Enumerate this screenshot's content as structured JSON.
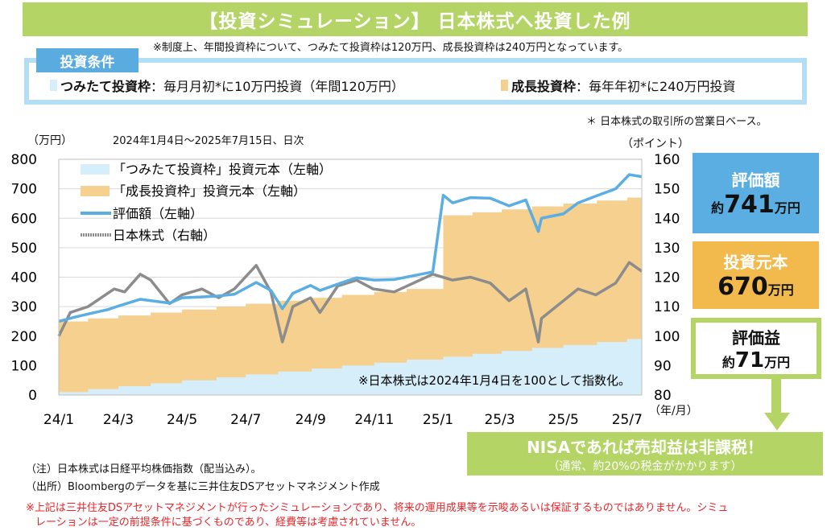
{
  "title": "【投資シミュレーション】 日本株式へ投資した例",
  "limit_note": "※制度上、年間投資枠について、つみたて投資枠は120万円、成長投資枠は240万円となっています。",
  "conditions": {
    "label": "投資条件",
    "tsumitate_name": "つみたて投資枠",
    "tsumitate_desc": "：毎月月初*に10万円投資（年間120万円）",
    "growth_name": "成長投資枠",
    "growth_desc": "：毎年年初*に240万円投資",
    "colors": {
      "tsumitate": "#d6eefa",
      "growth": "#f5d08f"
    }
  },
  "business_day_note": "＊ 日本株式の取引所の営業日ベース。",
  "summary": {
    "value_label": "評価額",
    "value_prefix": "約",
    "value_number": "741",
    "value_unit": "万円",
    "cost_label": "投資元本",
    "cost_number": "670",
    "cost_unit": "万円",
    "gain_label": "評価益",
    "gain_prefix": "約",
    "gain_number": "71",
    "gain_unit": "万円",
    "nisa_title": "NISAであれば売却益は非課税！",
    "nisa_sub": "（通常、約20%の税金がかかります）",
    "colors": {
      "value": "#5aaee2",
      "cost": "#f2b94c",
      "nisa": "#b4d465"
    }
  },
  "chart_data": {
    "type": "area",
    "ylabel_left": "（万円）",
    "ylabel_right": "（ポイント）",
    "xlabel": "（年/月）",
    "period": "2024年1月4日～2025年7月15日、日次",
    "annotation": "※日本株式は2024年1月4日を100として指数化。",
    "ylim_left": [
      0,
      800
    ],
    "yticks_left": [
      "0",
      "100",
      "200",
      "300",
      "400",
      "500",
      "600",
      "700",
      "800"
    ],
    "ylim_right": [
      80,
      160
    ],
    "yticks_right": [
      "80",
      "90",
      "100",
      "110",
      "120",
      "130",
      "140",
      "150",
      "160"
    ],
    "xticks": [
      {
        "label": "24/1",
        "date": "2024-01-01"
      },
      {
        "label": "24/3",
        "date": "2024-03-01"
      },
      {
        "label": "24/5",
        "date": "2024-05-01"
      },
      {
        "label": "24/7",
        "date": "2024-07-01"
      },
      {
        "label": "24/9",
        "date": "2024-09-01"
      },
      {
        "label": "24/11",
        "date": "2024-11-01"
      },
      {
        "label": "25/1",
        "date": "2025-01-01"
      },
      {
        "label": "25/3",
        "date": "2025-03-01"
      },
      {
        "label": "25/5",
        "date": "2025-05-01"
      },
      {
        "label": "25/7",
        "date": "2025-07-01"
      }
    ],
    "xrange": [
      "2024-01-04",
      "2025-07-15"
    ],
    "grid": "horizontal",
    "legend": "top-left",
    "series": [
      {
        "name": "「つみたて投資枠」投資元本（左軸）",
        "axis": "left",
        "kind": "area-step",
        "color": "#d6eefa",
        "points": [
          [
            "2024-01-04",
            10
          ],
          [
            "2024-02-01",
            20
          ],
          [
            "2024-03-01",
            30
          ],
          [
            "2024-04-01",
            40
          ],
          [
            "2024-05-01",
            50
          ],
          [
            "2024-06-03",
            60
          ],
          [
            "2024-07-01",
            70
          ],
          [
            "2024-08-01",
            80
          ],
          [
            "2024-09-02",
            90
          ],
          [
            "2024-10-01",
            100
          ],
          [
            "2024-11-01",
            110
          ],
          [
            "2024-12-02",
            120
          ],
          [
            "2025-01-06",
            130
          ],
          [
            "2025-02-03",
            140
          ],
          [
            "2025-03-03",
            150
          ],
          [
            "2025-04-01",
            160
          ],
          [
            "2025-05-01",
            170
          ],
          [
            "2025-06-02",
            180
          ],
          [
            "2025-07-01",
            190
          ]
        ]
      },
      {
        "name": "「成長投資枠」投資元本（左軸）",
        "axis": "left",
        "kind": "area-step-stacked",
        "color": "#f5d08f",
        "points": [
          [
            "2024-01-04",
            240
          ],
          [
            "2025-01-06",
            480
          ]
        ]
      },
      {
        "name": "評価額（左軸）",
        "axis": "left",
        "kind": "line",
        "color": "#5aaee2",
        "points": [
          [
            "2024-01-04",
            250
          ],
          [
            "2024-01-20",
            265
          ],
          [
            "2024-02-01",
            275
          ],
          [
            "2024-02-20",
            290
          ],
          [
            "2024-03-01",
            302
          ],
          [
            "2024-03-22",
            325
          ],
          [
            "2024-04-19",
            312
          ],
          [
            "2024-05-01",
            330
          ],
          [
            "2024-06-01",
            335
          ],
          [
            "2024-06-20",
            342
          ],
          [
            "2024-07-11",
            382
          ],
          [
            "2024-07-25",
            355
          ],
          [
            "2024-08-05",
            293
          ],
          [
            "2024-08-15",
            345
          ],
          [
            "2024-09-01",
            372
          ],
          [
            "2024-09-10",
            355
          ],
          [
            "2024-09-30",
            380
          ],
          [
            "2024-10-15",
            398
          ],
          [
            "2024-11-01",
            390
          ],
          [
            "2024-11-20",
            392
          ],
          [
            "2024-12-27",
            418
          ],
          [
            "2025-01-06",
            678
          ],
          [
            "2025-01-15",
            652
          ],
          [
            "2025-02-01",
            670
          ],
          [
            "2025-02-20",
            668
          ],
          [
            "2025-03-10",
            642
          ],
          [
            "2025-03-26",
            662
          ],
          [
            "2025-04-07",
            555
          ],
          [
            "2025-04-10",
            600
          ],
          [
            "2025-05-01",
            615
          ],
          [
            "2025-05-15",
            652
          ],
          [
            "2025-06-01",
            675
          ],
          [
            "2025-06-20",
            700
          ],
          [
            "2025-07-03",
            748
          ],
          [
            "2025-07-15",
            741
          ]
        ]
      },
      {
        "name": "日本株式（右軸）",
        "axis": "right",
        "kind": "line",
        "color": "#8c8c8c",
        "points": [
          [
            "2024-01-04",
            100
          ],
          [
            "2024-01-15",
            108
          ],
          [
            "2024-02-01",
            110
          ],
          [
            "2024-02-26",
            116
          ],
          [
            "2024-03-07",
            115
          ],
          [
            "2024-03-22",
            121
          ],
          [
            "2024-04-01",
            119
          ],
          [
            "2024-04-19",
            111
          ],
          [
            "2024-05-01",
            114
          ],
          [
            "2024-05-20",
            116
          ],
          [
            "2024-06-05",
            113
          ],
          [
            "2024-06-20",
            116
          ],
          [
            "2024-07-11",
            124
          ],
          [
            "2024-07-25",
            115
          ],
          [
            "2024-08-05",
            98
          ],
          [
            "2024-08-15",
            110
          ],
          [
            "2024-09-01",
            113
          ],
          [
            "2024-09-10",
            108
          ],
          [
            "2024-09-27",
            117
          ],
          [
            "2024-10-15",
            119
          ],
          [
            "2024-10-31",
            116
          ],
          [
            "2024-11-20",
            115
          ],
          [
            "2024-12-27",
            121
          ],
          [
            "2025-01-15",
            119
          ],
          [
            "2025-02-01",
            120
          ],
          [
            "2025-02-20",
            118
          ],
          [
            "2025-03-10",
            112
          ],
          [
            "2025-03-26",
            116
          ],
          [
            "2025-04-07",
            98
          ],
          [
            "2025-04-10",
            106
          ],
          [
            "2025-05-01",
            112
          ],
          [
            "2025-05-15",
            116
          ],
          [
            "2025-06-01",
            114
          ],
          [
            "2025-06-20",
            118
          ],
          [
            "2025-07-03",
            125
          ],
          [
            "2025-07-15",
            122
          ]
        ]
      }
    ]
  },
  "footnotes": {
    "note1": "（注）日本株式は日経平均株価指数（配当込み）。",
    "note2": "（出所）Bloombergのデータを基に三井住友DSアセットマネジメント作成",
    "disclaimer1": "※上記は三井住友DSアセットマネジメントが行ったシミュレーションであり、将来の運用成果等を示唆あるいは保証するものではありません。シミュ",
    "disclaimer2": "レーションは一定の前提条件に基づくものであり、経費等は考慮されていません。"
  }
}
